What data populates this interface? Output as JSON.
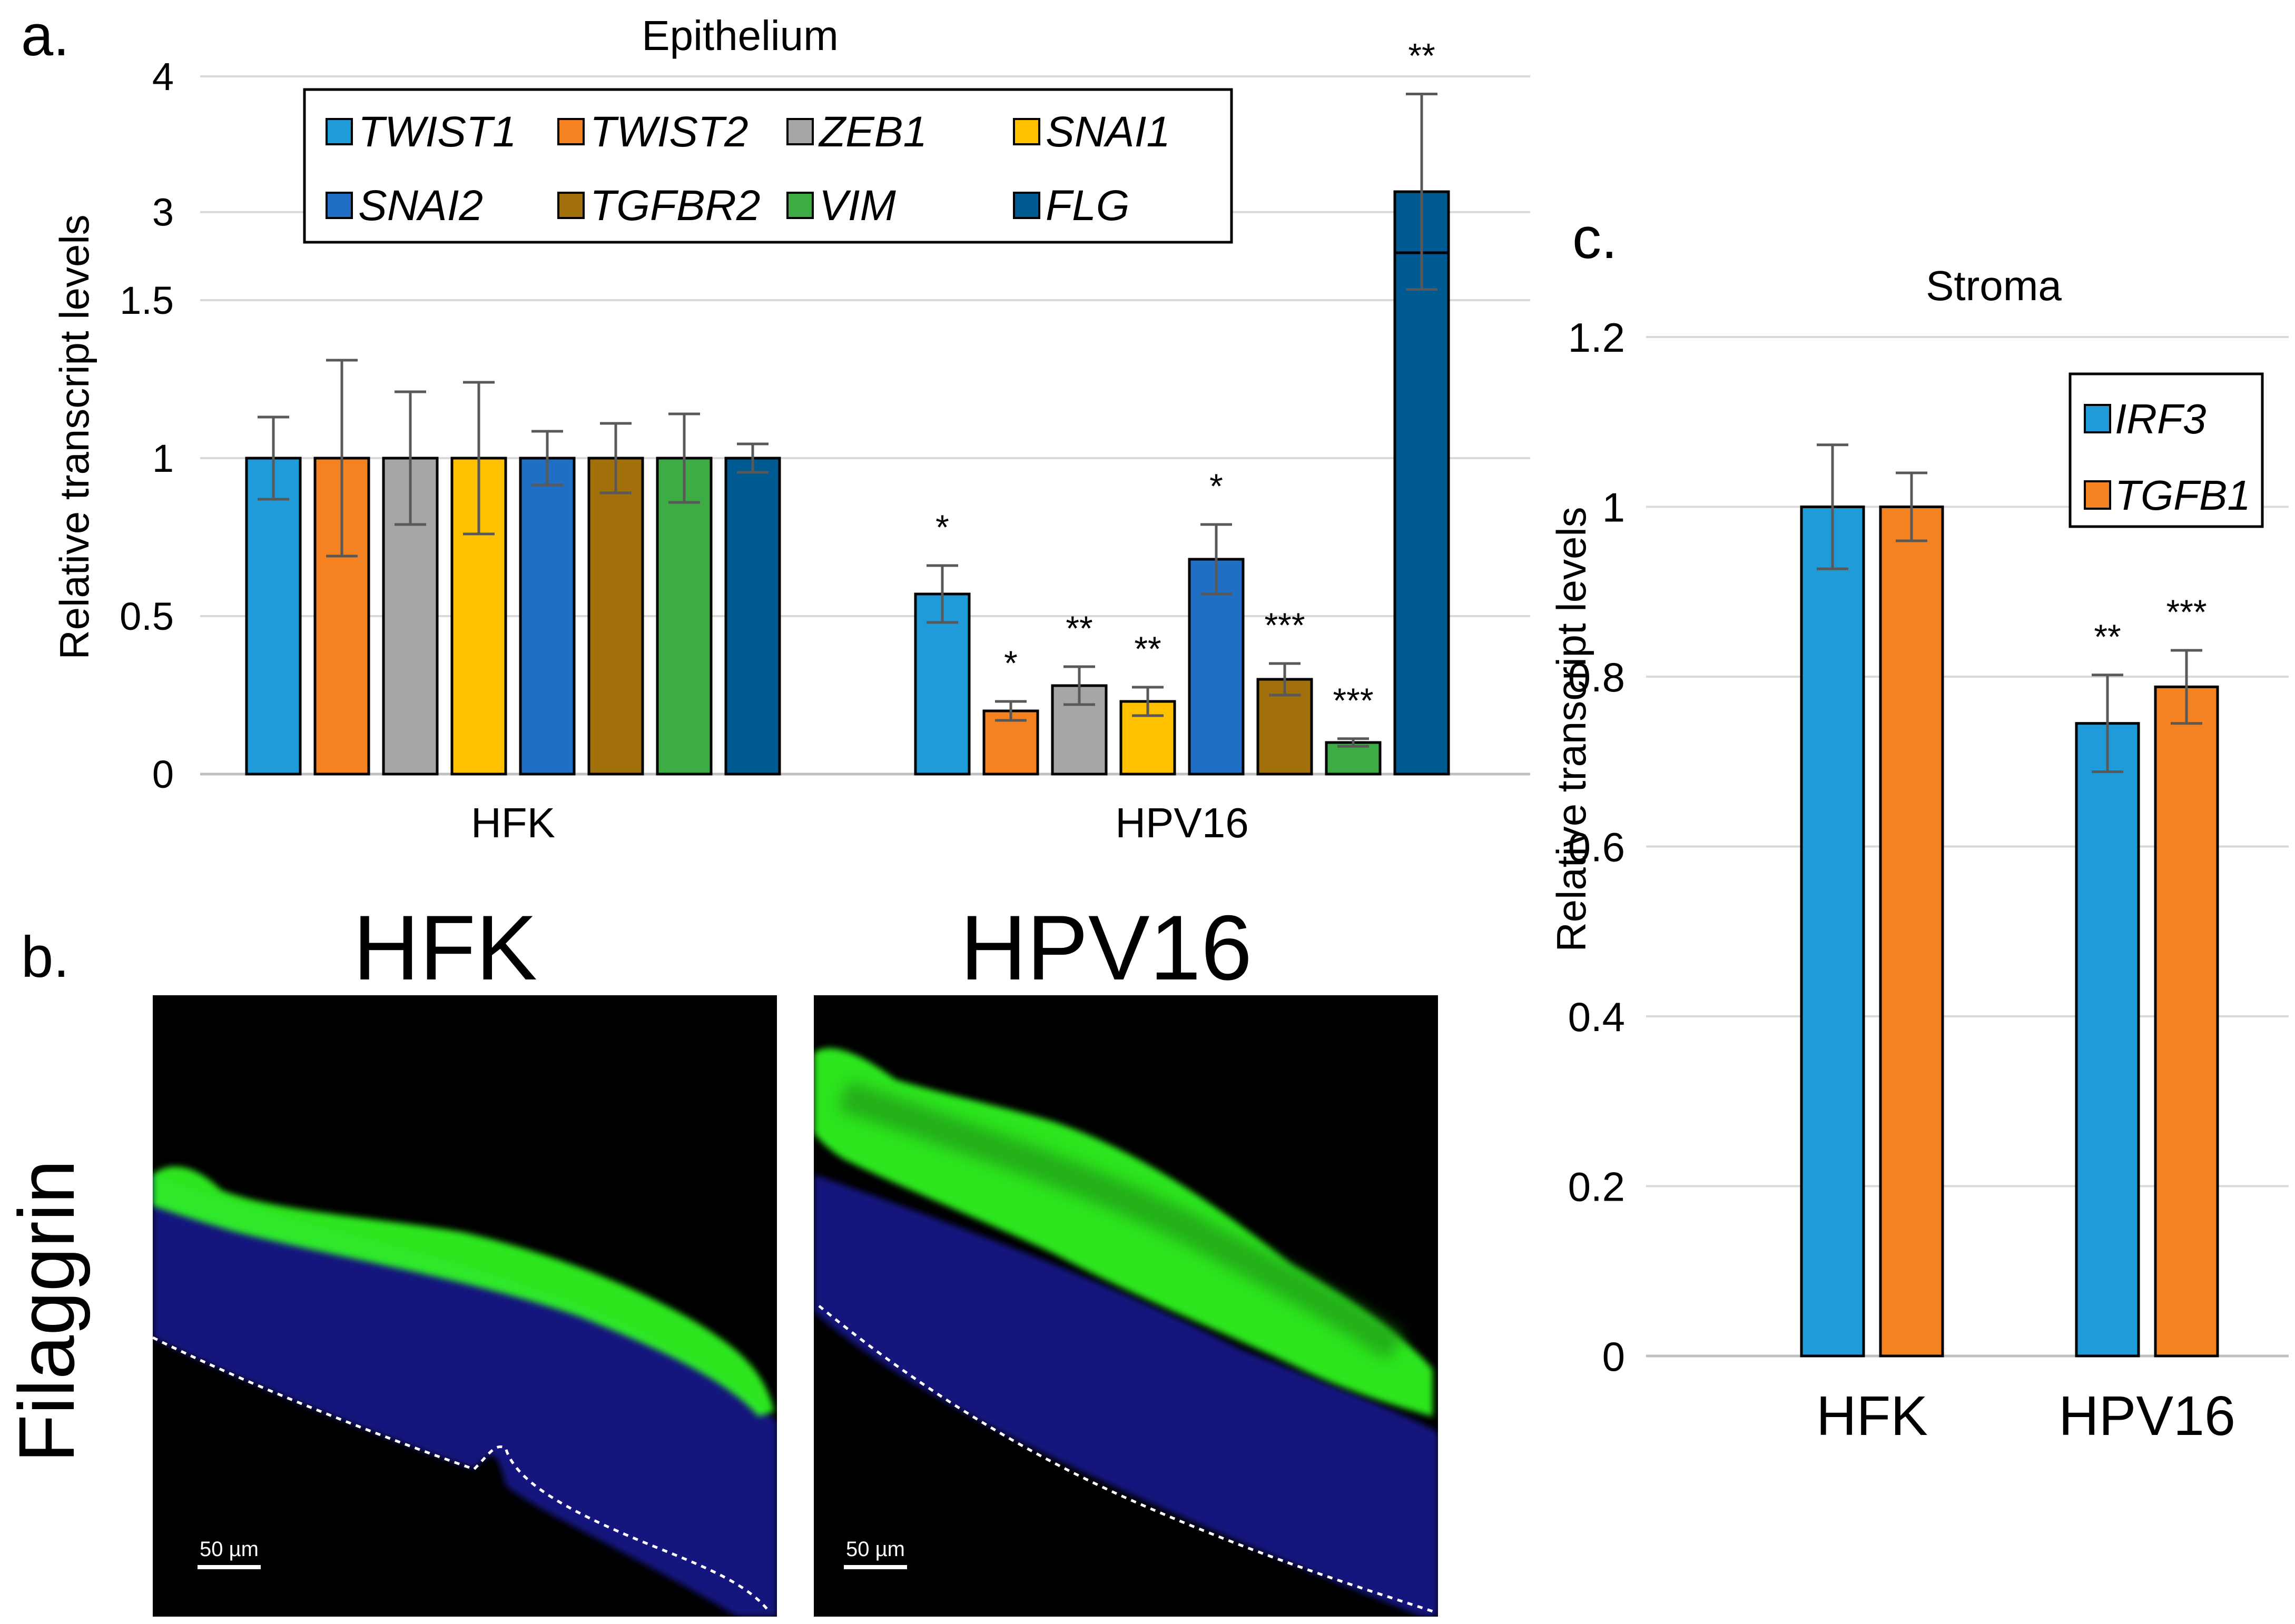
{
  "panels": {
    "a": {
      "letter": "a."
    },
    "b": {
      "letter": "b.",
      "row_label": "Filaggrin",
      "scalebar": "50 µm",
      "images": [
        {
          "title": "HFK"
        },
        {
          "title": "HPV16"
        }
      ]
    },
    "c": {
      "letter": "c."
    }
  },
  "colors": {
    "TWIST1": "#1f9bd9",
    "TWIST2": "#f58220",
    "ZEB1": "#a6a6a6",
    "SNAI1": "#ffc000",
    "SNAI2": "#1f6fc5",
    "TGFBR2": "#a2700a",
    "VIM": "#3eac45",
    "FLG": "#005a92",
    "IRF3": "#1f9bd9",
    "TGFB1": "#f58220",
    "micro_bg": "#000000",
    "green": "#33ff22",
    "nuclei": "#1a1ea8"
  },
  "chart_data": [
    {
      "id": "epithelium",
      "type": "bar",
      "title": "Epithelium",
      "ylabel": "Relative transcript levels",
      "xlabel": "",
      "categories": [
        "HFK",
        "HPV16"
      ],
      "y_axis_broken": true,
      "ylim_lower": [
        0,
        1.5
      ],
      "ylim_upper": [
        2.7,
        4
      ],
      "yticks": [
        "0",
        "0.5",
        "1",
        "1.5",
        "3",
        "4"
      ],
      "legend_position": "top",
      "series": [
        {
          "name": "TWIST1",
          "values": [
            1,
            0.57
          ],
          "errors": [
            0.13,
            0.09
          ],
          "significance": [
            "",
            "*"
          ]
        },
        {
          "name": "TWIST2",
          "values": [
            1,
            0.2
          ],
          "errors": [
            0.31,
            0.03
          ],
          "significance": [
            "",
            "*"
          ]
        },
        {
          "name": "ZEB1",
          "values": [
            1,
            0.28
          ],
          "errors": [
            0.21,
            0.06
          ],
          "significance": [
            "",
            "**"
          ]
        },
        {
          "name": "SNAI1",
          "values": [
            1,
            0.23
          ],
          "errors": [
            0.24,
            0.045
          ],
          "significance": [
            "",
            "**"
          ]
        },
        {
          "name": "SNAI2",
          "values": [
            1,
            0.68
          ],
          "errors": [
            0.085,
            0.11
          ],
          "significance": [
            "",
            "*"
          ]
        },
        {
          "name": "TGFBR2",
          "values": [
            1,
            0.3
          ],
          "errors": [
            0.11,
            0.05
          ],
          "significance": [
            "",
            "***"
          ]
        },
        {
          "name": "VIM",
          "values": [
            1,
            0.1
          ],
          "errors": [
            0.14,
            0.012
          ],
          "significance": [
            "",
            "***"
          ]
        },
        {
          "name": "FLG",
          "values": [
            1,
            3.15
          ],
          "errors": [
            0.045,
            0.72
          ],
          "significance": [
            "",
            "**"
          ]
        }
      ]
    },
    {
      "id": "stroma",
      "type": "bar",
      "title": "Stroma",
      "ylabel": "Relative transcript levels",
      "xlabel": "",
      "categories": [
        "HFK",
        "HPV16"
      ],
      "ylim": [
        0,
        1.2
      ],
      "yticks": [
        "0",
        "0.2",
        "0.4",
        "0.6",
        "0.8",
        "1",
        "1.2"
      ],
      "legend_position": "top-right",
      "series": [
        {
          "name": "IRF3",
          "values": [
            1,
            0.745
          ],
          "errors": [
            0.073,
            0.057
          ],
          "significance": [
            "",
            "**"
          ]
        },
        {
          "name": "TGFB1",
          "values": [
            1,
            0.788
          ],
          "errors": [
            0.04,
            0.043
          ],
          "significance": [
            "",
            "***"
          ]
        }
      ]
    }
  ]
}
